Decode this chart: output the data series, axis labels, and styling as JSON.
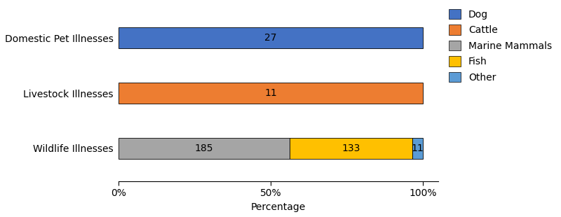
{
  "categories": [
    "Domestic Pet Illnesses",
    "Livestock Illnesses",
    "Wildlife Illnesses"
  ],
  "series": [
    {
      "label": "Dog",
      "color": "#4472C4",
      "values": [
        100.0,
        0.0,
        0.0
      ],
      "raw_values": [
        27,
        0,
        0
      ]
    },
    {
      "label": "Cattle",
      "color": "#ED7D31",
      "values": [
        0.0,
        100.0,
        0.0
      ],
      "raw_values": [
        0,
        11,
        0
      ]
    },
    {
      "label": "Marine Mammals",
      "color": "#A5A5A5",
      "values": [
        0.0,
        0.0,
        56.231884057971016
      ],
      "raw_values": [
        0,
        0,
        185
      ]
    },
    {
      "label": "Fish",
      "color": "#FFC000",
      "values": [
        0.0,
        0.0,
        40.42553191489362
      ],
      "raw_values": [
        0,
        0,
        133
      ]
    },
    {
      "label": "Other",
      "color": "#5B9BD5",
      "values": [
        0.0,
        0.0,
        3.3424657534246576
      ],
      "raw_values": [
        0,
        0,
        11
      ]
    }
  ],
  "xlabel": "Percentage",
  "xlim": [
    0,
    105
  ],
  "xticks": [
    0,
    50,
    100
  ],
  "xticklabels": [
    "0%",
    "50%",
    "100%"
  ],
  "bar_height": 0.38,
  "background_color": "#ffffff",
  "label_fontsize": 10,
  "tick_fontsize": 10,
  "legend_fontsize": 10,
  "ylabel_fontsize": 10
}
